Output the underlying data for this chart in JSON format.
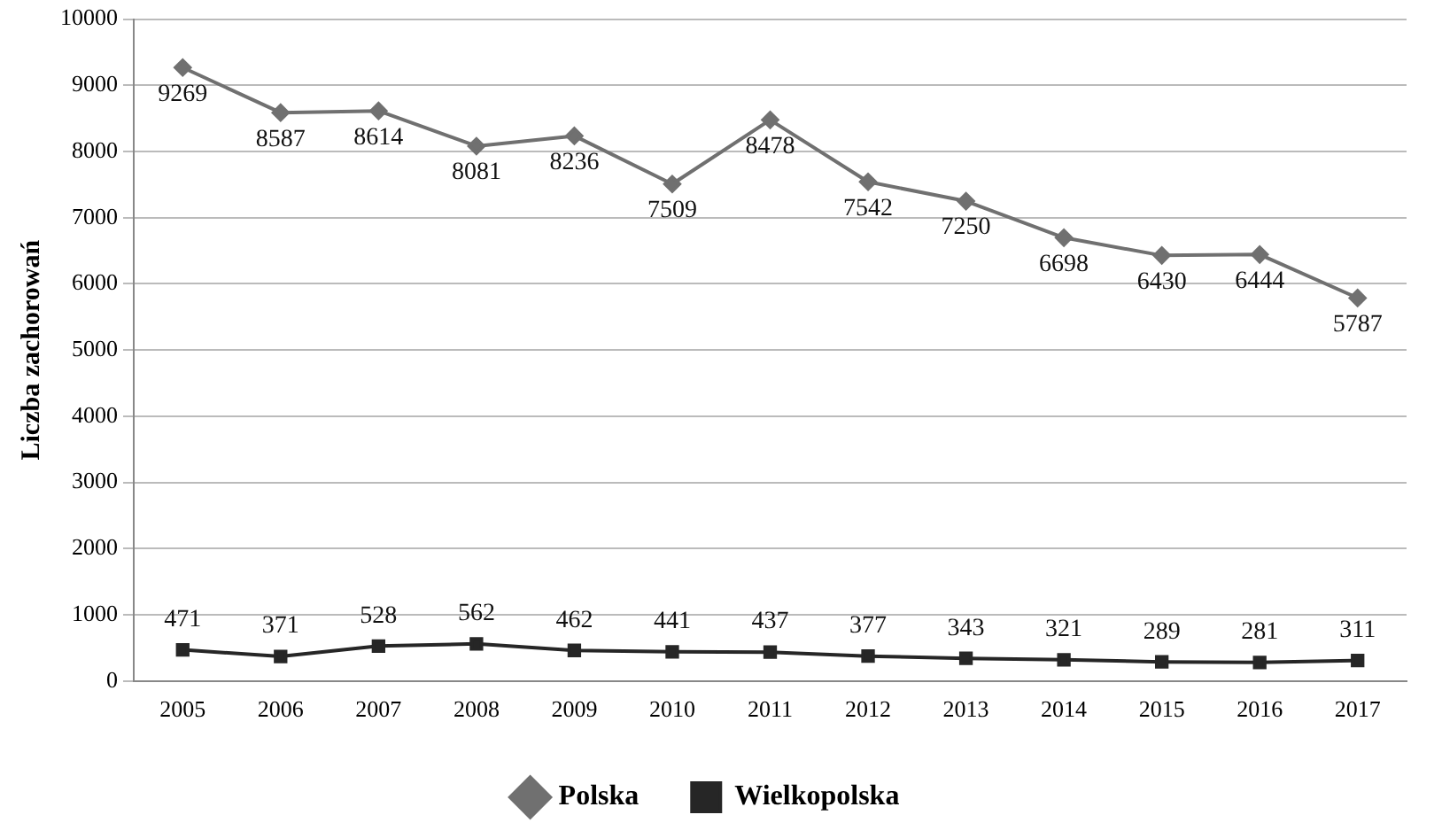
{
  "chart_data": {
    "type": "line",
    "ylabel": "Liczba zachorowań",
    "categories": [
      "2005",
      "2006",
      "2007",
      "2008",
      "2009",
      "2010",
      "2011",
      "2012",
      "2013",
      "2014",
      "2015",
      "2016",
      "2017"
    ],
    "series": [
      {
        "name": "Polska",
        "color": "#707070",
        "marker": "diamond",
        "values": [
          9269,
          8587,
          8614,
          8081,
          8236,
          7509,
          8478,
          7542,
          7250,
          6698,
          6430,
          6444,
          5787
        ]
      },
      {
        "name": "Wielkopolska",
        "color": "#262626",
        "marker": "square",
        "values": [
          471,
          371,
          528,
          562,
          462,
          441,
          437,
          377,
          343,
          321,
          289,
          281,
          311
        ]
      }
    ],
    "ylim": [
      0,
      10000
    ],
    "yticks": [
      0,
      1000,
      2000,
      3000,
      4000,
      5000,
      6000,
      7000,
      8000,
      9000,
      10000
    ],
    "grid": "y",
    "legend": "bottom",
    "data_labels": true,
    "line_style": "solid"
  }
}
